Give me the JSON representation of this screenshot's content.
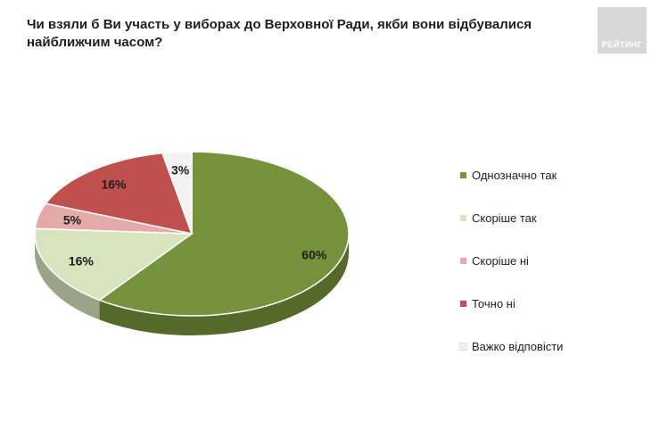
{
  "title": "Чи взяли б Ви участь у виборах до Верховної Ради, якби вони відбувалися найближчим часом?",
  "logo_text": "РЕЙТИНГ",
  "chart_data": {
    "type": "pie",
    "title": "Чи взяли б Ви участь у виборах до Верховної Ради, якби вони відбувалися найближчим часом?",
    "legend_position": "right",
    "slices": [
      {
        "label": "Однозначно так",
        "value": 60,
        "value_label": "60%",
        "color": "#76923c"
      },
      {
        "label": "Скоріше  так",
        "value": 16,
        "value_label": "16%",
        "color": "#d7e4bd"
      },
      {
        "label": "Скоріше  ні",
        "value": 5,
        "value_label": "5%",
        "color": "#e6a9a9"
      },
      {
        "label": "Точно ні",
        "value": 16,
        "value_label": "16%",
        "color": "#c0504d"
      },
      {
        "label": "Важко відповісти",
        "value": 3,
        "value_label": "3%",
        "color": "#f2f2f2"
      }
    ]
  }
}
